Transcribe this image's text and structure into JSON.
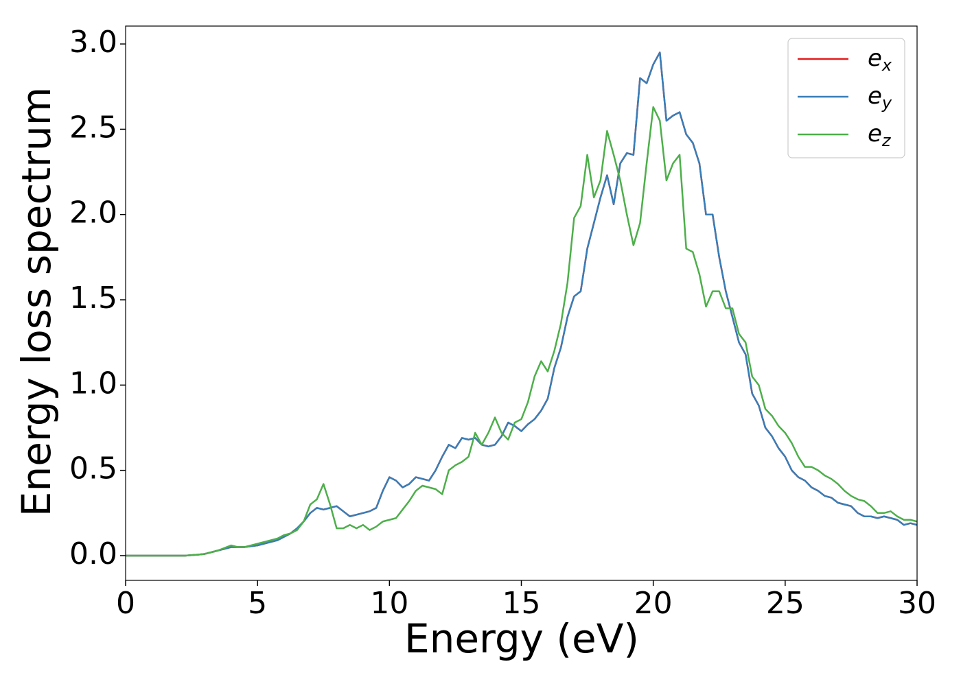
{
  "chart_data": {
    "type": "line",
    "xlabel": "Energy (eV)",
    "ylabel": "Energy loss spectrum",
    "x": [
      0,
      0.25,
      0.5,
      0.75,
      1,
      1.25,
      1.5,
      1.75,
      2,
      2.25,
      2.5,
      2.75,
      3,
      3.25,
      3.5,
      3.75,
      4,
      4.25,
      4.5,
      4.75,
      5,
      5.25,
      5.5,
      5.75,
      6,
      6.25,
      6.5,
      6.75,
      7,
      7.25,
      7.5,
      7.75,
      8,
      8.25,
      8.5,
      8.75,
      9,
      9.25,
      9.5,
      9.75,
      10,
      10.25,
      10.5,
      10.75,
      11,
      11.25,
      11.5,
      11.75,
      12,
      12.25,
      12.5,
      12.75,
      13,
      13.25,
      13.5,
      13.75,
      14,
      14.25,
      14.5,
      14.75,
      15,
      15.25,
      15.5,
      15.75,
      16,
      16.25,
      16.5,
      16.75,
      17,
      17.25,
      17.5,
      17.75,
      18,
      18.25,
      18.5,
      18.75,
      19,
      19.25,
      19.5,
      19.75,
      20,
      20.25,
      20.5,
      20.75,
      21,
      21.25,
      21.5,
      21.75,
      22,
      22.25,
      22.5,
      22.75,
      23,
      23.25,
      23.5,
      23.75,
      24,
      24.25,
      24.5,
      24.75,
      25,
      25.25,
      25.5,
      25.75,
      26,
      26.25,
      26.5,
      26.75,
      27,
      27.25,
      27.5,
      27.75,
      28,
      28.25,
      28.5,
      28.75,
      29,
      29.25,
      29.5,
      29.75,
      30
    ],
    "series": [
      {
        "name": "e_x",
        "color": "#e41a1c",
        "values": [
          0,
          0,
          0,
          0,
          0,
          0,
          0,
          0,
          0,
          0,
          0.003,
          0.006,
          0.01,
          0.02,
          0.03,
          0.04,
          0.05,
          0.05,
          0.05,
          0.055,
          0.06,
          0.07,
          0.08,
          0.09,
          0.11,
          0.13,
          0.16,
          0.2,
          0.25,
          0.28,
          0.27,
          0.28,
          0.29,
          0.26,
          0.23,
          0.24,
          0.25,
          0.26,
          0.28,
          0.38,
          0.46,
          0.44,
          0.4,
          0.42,
          0.46,
          0.45,
          0.44,
          0.5,
          0.58,
          0.65,
          0.63,
          0.69,
          0.68,
          0.69,
          0.65,
          0.64,
          0.65,
          0.7,
          0.78,
          0.76,
          0.73,
          0.77,
          0.8,
          0.85,
          0.92,
          1.1,
          1.22,
          1.4,
          1.52,
          1.55,
          1.8,
          1.95,
          2.1,
          2.23,
          2.06,
          2.3,
          2.36,
          2.35,
          2.8,
          2.77,
          2.88,
          2.95,
          2.55,
          2.58,
          2.6,
          2.47,
          2.42,
          2.3,
          2.0,
          2.0,
          1.75,
          1.55,
          1.4,
          1.25,
          1.18,
          0.95,
          0.88,
          0.75,
          0.7,
          0.63,
          0.58,
          0.5,
          0.46,
          0.44,
          0.4,
          0.38,
          0.35,
          0.34,
          0.31,
          0.3,
          0.29,
          0.25,
          0.23,
          0.23,
          0.22,
          0.23,
          0.22,
          0.21,
          0.18,
          0.19,
          0.18
        ]
      },
      {
        "name": "e_y",
        "color": "#377eb8",
        "values": [
          0,
          0,
          0,
          0,
          0,
          0,
          0,
          0,
          0,
          0,
          0.003,
          0.006,
          0.01,
          0.02,
          0.03,
          0.04,
          0.05,
          0.05,
          0.05,
          0.055,
          0.06,
          0.07,
          0.08,
          0.09,
          0.11,
          0.13,
          0.16,
          0.2,
          0.25,
          0.28,
          0.27,
          0.28,
          0.29,
          0.26,
          0.23,
          0.24,
          0.25,
          0.26,
          0.28,
          0.38,
          0.46,
          0.44,
          0.4,
          0.42,
          0.46,
          0.45,
          0.44,
          0.5,
          0.58,
          0.65,
          0.63,
          0.69,
          0.68,
          0.69,
          0.65,
          0.64,
          0.65,
          0.7,
          0.78,
          0.76,
          0.73,
          0.77,
          0.8,
          0.85,
          0.92,
          1.1,
          1.22,
          1.4,
          1.52,
          1.55,
          1.8,
          1.95,
          2.1,
          2.23,
          2.06,
          2.3,
          2.36,
          2.35,
          2.8,
          2.77,
          2.88,
          2.95,
          2.55,
          2.58,
          2.6,
          2.47,
          2.42,
          2.3,
          2.0,
          2.0,
          1.75,
          1.55,
          1.4,
          1.25,
          1.18,
          0.95,
          0.88,
          0.75,
          0.7,
          0.63,
          0.58,
          0.5,
          0.46,
          0.44,
          0.4,
          0.38,
          0.35,
          0.34,
          0.31,
          0.3,
          0.29,
          0.25,
          0.23,
          0.23,
          0.22,
          0.23,
          0.22,
          0.21,
          0.18,
          0.19,
          0.18
        ]
      },
      {
        "name": "e_z",
        "color": "#4daf4a",
        "values": [
          0,
          0,
          0,
          0,
          0,
          0,
          0,
          0,
          0,
          0,
          0.003,
          0.006,
          0.01,
          0.02,
          0.03,
          0.045,
          0.06,
          0.05,
          0.05,
          0.06,
          0.07,
          0.08,
          0.09,
          0.1,
          0.12,
          0.13,
          0.15,
          0.2,
          0.3,
          0.33,
          0.42,
          0.3,
          0.16,
          0.16,
          0.18,
          0.16,
          0.18,
          0.15,
          0.17,
          0.2,
          0.21,
          0.22,
          0.27,
          0.32,
          0.38,
          0.41,
          0.4,
          0.39,
          0.36,
          0.5,
          0.53,
          0.55,
          0.58,
          0.72,
          0.65,
          0.72,
          0.81,
          0.72,
          0.68,
          0.78,
          0.8,
          0.9,
          1.05,
          1.14,
          1.08,
          1.2,
          1.36,
          1.6,
          1.98,
          2.05,
          2.35,
          2.1,
          2.2,
          2.49,
          2.35,
          2.2,
          2.0,
          1.82,
          1.95,
          2.3,
          2.63,
          2.55,
          2.2,
          2.3,
          2.35,
          1.8,
          1.78,
          1.65,
          1.46,
          1.55,
          1.55,
          1.45,
          1.45,
          1.3,
          1.25,
          1.05,
          1.0,
          0.86,
          0.82,
          0.76,
          0.72,
          0.66,
          0.58,
          0.52,
          0.52,
          0.5,
          0.47,
          0.45,
          0.42,
          0.38,
          0.35,
          0.33,
          0.32,
          0.29,
          0.25,
          0.25,
          0.26,
          0.23,
          0.21,
          0.21,
          0.2
        ]
      }
    ],
    "xlim": [
      0,
      30
    ],
    "xticks": [
      0,
      5,
      10,
      15,
      20,
      25,
      30
    ],
    "ylim": [
      -0.145,
      3.105
    ],
    "yticks": [
      {
        "value": 0,
        "label": "0.0"
      },
      0.5,
      {
        "value": 1,
        "label": "1.0"
      },
      1.5,
      {
        "value": 2,
        "label": "2.0"
      },
      2.5,
      {
        "value": 3,
        "label": "3.0"
      }
    ],
    "grid": false,
    "legend": "upper right"
  }
}
